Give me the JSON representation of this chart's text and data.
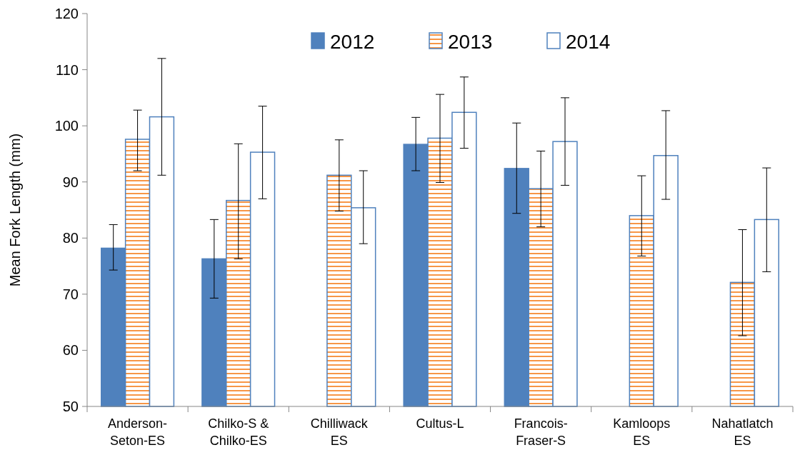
{
  "chart_data": {
    "type": "bar",
    "ylabel": "Mean Fork Length (mm)",
    "categories": [
      "Anderson-Seton-ES",
      "Chilko-S & Chilko-ES",
      "Chilliwack ES",
      "Cultus-L",
      "Francois-Fraser-S",
      "Kamloops ES",
      "Nahatlatch ES"
    ],
    "series": [
      {
        "name": "2012",
        "color": "#4f81bd",
        "values": [
          78.2,
          76.3,
          null,
          96.7,
          92.4,
          null,
          null
        ],
        "errors": [
          [
            74.3,
            82.4
          ],
          [
            69.3,
            83.3
          ],
          null,
          [
            92.0,
            101.5
          ],
          [
            84.4,
            100.5
          ],
          null,
          null
        ]
      },
      {
        "name": "2013",
        "color": "#f79646",
        "values": [
          97.6,
          86.7,
          91.2,
          97.8,
          88.8,
          84.0,
          72.1
        ],
        "errors": [
          [
            92.0,
            102.8
          ],
          [
            76.3,
            96.8
          ],
          [
            84.8,
            97.5
          ],
          [
            89.9,
            105.6
          ],
          [
            82.0,
            95.5
          ],
          [
            76.8,
            91.1
          ],
          [
            62.6,
            81.5
          ]
        ]
      },
      {
        "name": "2014",
        "color": "#ffffff",
        "values": [
          101.6,
          95.3,
          85.4,
          102.4,
          97.2,
          94.7,
          83.3
        ],
        "errors": [
          [
            91.2,
            112.0
          ],
          [
            87.0,
            103.5
          ],
          [
            79.0,
            92.0
          ],
          [
            96.0,
            108.7
          ],
          [
            89.4,
            105.0
          ],
          [
            86.9,
            102.7
          ],
          [
            74.0,
            92.5
          ]
        ]
      }
    ],
    "ylim": [
      50,
      120
    ],
    "yticks": [
      50,
      60,
      70,
      80,
      90,
      100,
      110,
      120
    ],
    "grid": false,
    "legend": "top"
  }
}
